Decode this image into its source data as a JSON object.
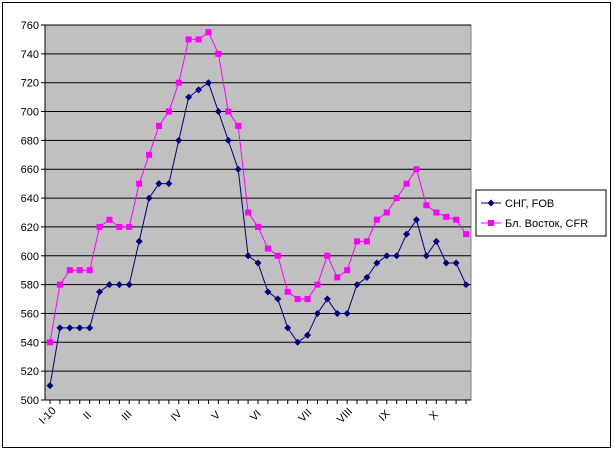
{
  "chart_data": {
    "type": "line",
    "title": "",
    "xlabel": "",
    "ylabel": "",
    "ylim": [
      500,
      760
    ],
    "y_ticks": [
      500,
      520,
      540,
      560,
      580,
      600,
      620,
      640,
      660,
      680,
      700,
      720,
      740,
      760
    ],
    "grid": "horizontal",
    "plot_background": "#c0c0c0",
    "legend_position": "right",
    "x_tick_labels": [
      {
        "label": "I-10",
        "index": 0
      },
      {
        "label": "II",
        "index": 4
      },
      {
        "label": "III",
        "index": 8
      },
      {
        "label": "IV",
        "index": 13
      },
      {
        "label": "V",
        "index": 17
      },
      {
        "label": "VI",
        "index": 21
      },
      {
        "label": "VII",
        "index": 26
      },
      {
        "label": "VIII",
        "index": 30
      },
      {
        "label": "IX",
        "index": 34
      },
      {
        "label": "X",
        "index": 39
      }
    ],
    "series": [
      {
        "name": "СНГ, FOB",
        "color": "#000080",
        "marker": "diamond",
        "values": [
          510,
          550,
          550,
          550,
          550,
          575,
          580,
          580,
          580,
          610,
          640,
          650,
          650,
          680,
          710,
          715,
          720,
          700,
          680,
          660,
          600,
          595,
          575,
          570,
          550,
          540,
          545,
          560,
          570,
          560,
          560,
          580,
          585,
          595,
          600,
          600,
          615,
          625,
          600,
          610,
          595,
          595,
          580
        ]
      },
      {
        "name": "Бл. Восток, CFR",
        "color": "#ff00ff",
        "marker": "square",
        "values": [
          540,
          580,
          590,
          590,
          590,
          620,
          625,
          620,
          620,
          650,
          670,
          690,
          700,
          720,
          750,
          750,
          755,
          740,
          700,
          690,
          630,
          620,
          605,
          600,
          575,
          570,
          570,
          580,
          600,
          585,
          590,
          610,
          610,
          625,
          630,
          640,
          650,
          660,
          635,
          630,
          627,
          625,
          615
        ]
      }
    ]
  }
}
